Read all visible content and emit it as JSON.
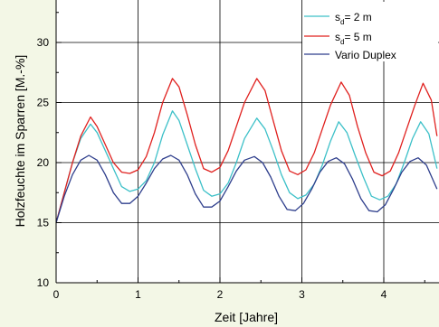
{
  "chart_data": {
    "type": "line",
    "xlabel": "Zeit [Jahre]",
    "ylabel": "Holzfeuchte im Sparren [M.-%]",
    "xlim": [
      0,
      4.65
    ],
    "ylim": [
      10,
      33
    ],
    "x_ticks": [
      0,
      1,
      2,
      3,
      4
    ],
    "y_ticks": [
      10,
      15,
      20,
      25,
      30
    ],
    "grid": true,
    "legend_position": "top-right",
    "series": [
      {
        "name_prefix": "s",
        "name_sub": "d",
        "name_suffix": "= 2 m",
        "color": "#3cc0c8",
        "points": [
          [
            0,
            15.0
          ],
          [
            0.1,
            17.5
          ],
          [
            0.2,
            20.0
          ],
          [
            0.3,
            22.0
          ],
          [
            0.42,
            23.2
          ],
          [
            0.5,
            22.5
          ],
          [
            0.6,
            21.0
          ],
          [
            0.7,
            19.5
          ],
          [
            0.8,
            18.0
          ],
          [
            0.9,
            17.6
          ],
          [
            1.0,
            17.8
          ],
          [
            1.1,
            18.5
          ],
          [
            1.2,
            20.0
          ],
          [
            1.3,
            22.3
          ],
          [
            1.42,
            24.3
          ],
          [
            1.5,
            23.5
          ],
          [
            1.6,
            21.5
          ],
          [
            1.7,
            19.5
          ],
          [
            1.8,
            17.7
          ],
          [
            1.9,
            17.2
          ],
          [
            2.0,
            17.4
          ],
          [
            2.1,
            18.3
          ],
          [
            2.2,
            20.0
          ],
          [
            2.3,
            22.0
          ],
          [
            2.45,
            23.7
          ],
          [
            2.55,
            22.8
          ],
          [
            2.65,
            21.0
          ],
          [
            2.75,
            19.0
          ],
          [
            2.85,
            17.5
          ],
          [
            2.95,
            17.0
          ],
          [
            3.05,
            17.3
          ],
          [
            3.15,
            18.2
          ],
          [
            3.25,
            19.8
          ],
          [
            3.35,
            21.8
          ],
          [
            3.45,
            23.4
          ],
          [
            3.55,
            22.5
          ],
          [
            3.65,
            20.6
          ],
          [
            3.75,
            18.8
          ],
          [
            3.85,
            17.2
          ],
          [
            3.95,
            16.9
          ],
          [
            4.05,
            17.2
          ],
          [
            4.15,
            18.2
          ],
          [
            4.25,
            20.0
          ],
          [
            4.35,
            22.0
          ],
          [
            4.45,
            23.4
          ],
          [
            4.55,
            22.4
          ],
          [
            4.65,
            19.5
          ]
        ]
      },
      {
        "name_prefix": "s",
        "name_sub": "d",
        "name_suffix": "= 5 m",
        "color": "#e0201e",
        "points": [
          [
            0,
            15.0
          ],
          [
            0.1,
            17.5
          ],
          [
            0.2,
            20.0
          ],
          [
            0.3,
            22.2
          ],
          [
            0.42,
            23.8
          ],
          [
            0.5,
            23.0
          ],
          [
            0.6,
            21.5
          ],
          [
            0.7,
            20.0
          ],
          [
            0.8,
            19.2
          ],
          [
            0.9,
            19.1
          ],
          [
            1.0,
            19.4
          ],
          [
            1.1,
            20.5
          ],
          [
            1.2,
            22.5
          ],
          [
            1.3,
            25.0
          ],
          [
            1.42,
            27.0
          ],
          [
            1.5,
            26.3
          ],
          [
            1.6,
            24.0
          ],
          [
            1.7,
            21.5
          ],
          [
            1.8,
            19.5
          ],
          [
            1.9,
            19.2
          ],
          [
            2.0,
            19.6
          ],
          [
            2.1,
            21.0
          ],
          [
            2.2,
            23.0
          ],
          [
            2.3,
            25.0
          ],
          [
            2.45,
            27.0
          ],
          [
            2.55,
            26.0
          ],
          [
            2.65,
            23.5
          ],
          [
            2.75,
            21.0
          ],
          [
            2.85,
            19.3
          ],
          [
            2.95,
            19.0
          ],
          [
            3.05,
            19.4
          ],
          [
            3.15,
            20.8
          ],
          [
            3.25,
            22.8
          ],
          [
            3.35,
            24.8
          ],
          [
            3.48,
            26.7
          ],
          [
            3.58,
            25.6
          ],
          [
            3.68,
            23.0
          ],
          [
            3.78,
            20.8
          ],
          [
            3.88,
            19.2
          ],
          [
            3.98,
            18.9
          ],
          [
            4.08,
            19.3
          ],
          [
            4.18,
            20.8
          ],
          [
            4.28,
            22.8
          ],
          [
            4.38,
            24.8
          ],
          [
            4.48,
            26.6
          ],
          [
            4.58,
            25.2
          ],
          [
            4.65,
            22.2
          ]
        ]
      },
      {
        "name": "Vario Duplex",
        "color": "#2e3e8c",
        "points": [
          [
            0,
            15.0
          ],
          [
            0.1,
            17.2
          ],
          [
            0.2,
            19.0
          ],
          [
            0.3,
            20.2
          ],
          [
            0.4,
            20.6
          ],
          [
            0.5,
            20.2
          ],
          [
            0.6,
            19.0
          ],
          [
            0.7,
            17.5
          ],
          [
            0.8,
            16.6
          ],
          [
            0.9,
            16.6
          ],
          [
            1.0,
            17.2
          ],
          [
            1.1,
            18.3
          ],
          [
            1.2,
            19.5
          ],
          [
            1.3,
            20.3
          ],
          [
            1.4,
            20.6
          ],
          [
            1.5,
            20.2
          ],
          [
            1.6,
            19.0
          ],
          [
            1.7,
            17.4
          ],
          [
            1.8,
            16.3
          ],
          [
            1.9,
            16.3
          ],
          [
            2.0,
            16.8
          ],
          [
            2.1,
            18.0
          ],
          [
            2.2,
            19.3
          ],
          [
            2.3,
            20.2
          ],
          [
            2.42,
            20.5
          ],
          [
            2.52,
            20.0
          ],
          [
            2.62,
            18.8
          ],
          [
            2.72,
            17.2
          ],
          [
            2.82,
            16.1
          ],
          [
            2.92,
            16.0
          ],
          [
            3.02,
            16.6
          ],
          [
            3.12,
            17.8
          ],
          [
            3.22,
            19.2
          ],
          [
            3.32,
            20.1
          ],
          [
            3.42,
            20.4
          ],
          [
            3.52,
            19.9
          ],
          [
            3.62,
            18.6
          ],
          [
            3.72,
            17.0
          ],
          [
            3.82,
            16.0
          ],
          [
            3.92,
            15.9
          ],
          [
            4.02,
            16.5
          ],
          [
            4.12,
            17.8
          ],
          [
            4.22,
            19.2
          ],
          [
            4.32,
            20.1
          ],
          [
            4.42,
            20.4
          ],
          [
            4.52,
            19.8
          ],
          [
            4.65,
            17.8
          ]
        ]
      }
    ]
  }
}
